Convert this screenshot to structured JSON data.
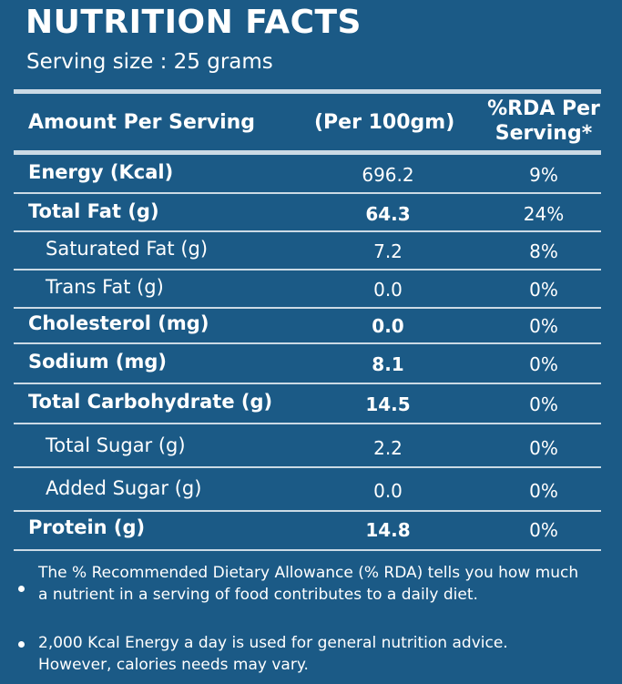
{
  "title": "NUTRITION FACTS",
  "serving_size": "Serving size : 25 grams",
  "header": {
    "amount": "Amount Per Serving",
    "per100": "(Per 100gm)",
    "rda_line1": "%RDA Per",
    "rda_line2": "Serving*"
  },
  "rows": [
    {
      "label": "Energy (Kcal)",
      "value": "696.2",
      "rda": "9%"
    },
    {
      "label": "Total Fat (g)",
      "value": "64.3",
      "rda": "24%"
    },
    {
      "label": "Saturated Fat (g)",
      "value": "7.2",
      "rda": "8%"
    },
    {
      "label": "Trans Fat (g)",
      "value": "0.0",
      "rda": "0%"
    },
    {
      "label": "Cholesterol (mg)",
      "value": "0.0",
      "rda": "0%"
    },
    {
      "label": "Sodium  (mg)",
      "value": "8.1",
      "rda": "0%"
    },
    {
      "label": "Total Carbohydrate (g)",
      "value": "14.5",
      "rda": "0%"
    },
    {
      "label": "Total Sugar (g)",
      "value": "2.2",
      "rda": "0%"
    },
    {
      "label": "Added Sugar (g)",
      "value": "0.0",
      "rda": "0%"
    },
    {
      "label": "Protein (g)",
      "value": "14.8",
      "rda": "0%"
    }
  ],
  "notes": [
    {
      "line1": "The % Recommended Dietary Allowance (% RDA) tells you how much",
      "line2": "a nutrient in a serving of food contributes to a daily diet."
    },
    {
      "line1": "2,000 Kcal Energy a day is used for general nutrition advice.",
      "line2": "However, calories needs may vary."
    }
  ]
}
